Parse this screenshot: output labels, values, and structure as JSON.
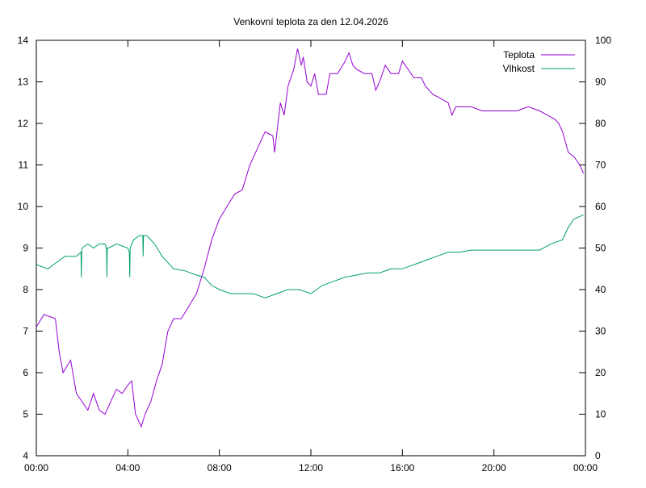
{
  "chart_data": {
    "type": "line",
    "title": "Venkovní teplota za den 12.04.2026",
    "xlabel": "",
    "ylabel": "",
    "y2label": "",
    "xlim_minutes": [
      0,
      1440
    ],
    "x_tick_labels": [
      "00:00",
      "04:00",
      "08:00",
      "12:00",
      "16:00",
      "20:00",
      "00:00"
    ],
    "ylim": [
      4,
      14
    ],
    "y_ticks": [
      4,
      5,
      6,
      7,
      8,
      9,
      10,
      11,
      12,
      13,
      14
    ],
    "y2lim": [
      0,
      100
    ],
    "y2_ticks": [
      0,
      10,
      20,
      30,
      40,
      50,
      60,
      70,
      80,
      90,
      100
    ],
    "grid": false,
    "legend_position": "top-right",
    "series": [
      {
        "name": "Teplota",
        "axis": "left",
        "color": "#9400d3",
        "x_minutes": [
          0,
          20,
          50,
          60,
          70,
          90,
          105,
          120,
          135,
          150,
          165,
          180,
          195,
          210,
          225,
          240,
          250,
          260,
          275,
          285,
          300,
          315,
          330,
          345,
          360,
          380,
          400,
          420,
          440,
          460,
          480,
          500,
          520,
          540,
          560,
          580,
          600,
          620,
          625,
          640,
          650,
          660,
          675,
          685,
          695,
          700,
          710,
          720,
          730,
          740,
          760,
          770,
          790,
          810,
          820,
          830,
          840,
          860,
          880,
          890,
          900,
          915,
          930,
          950,
          960,
          975,
          990,
          1010,
          1020,
          1040,
          1060,
          1080,
          1090,
          1100,
          1125,
          1140,
          1170,
          1200,
          1210,
          1260,
          1290,
          1320,
          1340,
          1360,
          1370,
          1380,
          1395,
          1410,
          1425,
          1435
        ],
        "values": [
          7.1,
          7.4,
          7.3,
          6.5,
          6.0,
          6.3,
          5.5,
          5.3,
          5.1,
          5.5,
          5.1,
          5.0,
          5.3,
          5.6,
          5.5,
          5.7,
          5.8,
          5.0,
          4.7,
          5.0,
          5.3,
          5.8,
          6.2,
          7.0,
          7.3,
          7.3,
          7.6,
          7.9,
          8.5,
          9.2,
          9.7,
          10.0,
          10.3,
          10.4,
          11.0,
          11.4,
          11.8,
          11.7,
          11.3,
          12.5,
          12.2,
          12.9,
          13.3,
          13.8,
          13.4,
          13.6,
          13.0,
          12.9,
          13.2,
          12.7,
          12.7,
          13.2,
          13.2,
          13.5,
          13.7,
          13.4,
          13.3,
          13.2,
          13.2,
          12.8,
          13.0,
          13.4,
          13.2,
          13.2,
          13.5,
          13.3,
          13.1,
          13.1,
          12.9,
          12.7,
          12.6,
          12.5,
          12.2,
          12.4,
          12.4,
          12.4,
          12.3,
          12.3,
          12.3,
          12.3,
          12.4,
          12.3,
          12.2,
          12.1,
          12.0,
          11.8,
          11.3,
          11.2,
          11.0,
          10.8
        ]
      },
      {
        "name": "Vlhkost",
        "axis": "right",
        "color": "#009e73",
        "x_minutes": [
          0,
          30,
          60,
          75,
          105,
          117,
          118,
          119,
          120,
          135,
          150,
          165,
          180,
          184,
          185,
          186,
          190,
          210,
          240,
          244,
          245,
          246,
          255,
          270,
          279,
          280,
          281,
          290,
          310,
          330,
          360,
          390,
          420,
          440,
          460,
          480,
          510,
          540,
          570,
          600,
          630,
          660,
          690,
          720,
          750,
          780,
          810,
          840,
          870,
          900,
          930,
          960,
          990,
          1020,
          1050,
          1080,
          1110,
          1140,
          1200,
          1260,
          1320,
          1350,
          1380,
          1395,
          1410,
          1435
        ],
        "values": [
          46,
          45,
          47,
          48,
          48,
          49,
          43,
          49,
          50,
          51,
          50,
          51,
          51,
          50,
          43,
          50,
          50,
          51,
          50,
          49,
          43,
          50,
          52,
          53,
          53,
          48,
          53,
          53,
          51,
          48,
          45,
          44.5,
          43.5,
          43,
          41,
          40,
          39,
          39,
          39,
          38,
          39,
          40,
          40,
          39,
          41,
          42,
          43,
          43.5,
          44,
          44,
          45,
          45,
          46,
          47,
          48,
          49,
          49,
          49.5,
          49.5,
          49.5,
          49.5,
          51,
          52,
          55,
          57,
          58
        ]
      }
    ]
  }
}
